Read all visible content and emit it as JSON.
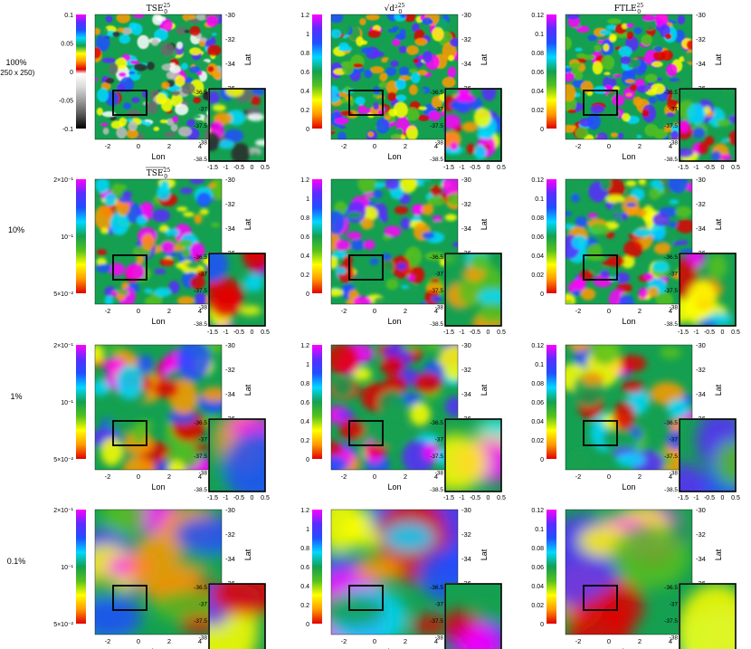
{
  "rows": [
    {
      "label": "100%",
      "sublabel": "(250 x 250)"
    },
    {
      "label": "10%",
      "sublabel": ""
    },
    {
      "label": "1%",
      "sublabel": ""
    },
    {
      "label": "0.1%",
      "sublabel": ""
    }
  ],
  "columns": [
    {
      "title_base": "TSE",
      "sup": "25",
      "sub": "0",
      "overline": false,
      "colorbar": "diverging"
    },
    {
      "title_base": "√d²",
      "sup": "25",
      "sub": "0",
      "overline": false,
      "colorbar": "rainbow"
    },
    {
      "title_base": "FTLE",
      "sup": "25",
      "sub": "0",
      "overline": false,
      "colorbar": "rainbow"
    }
  ],
  "row2_col1_title": {
    "base": "TSE",
    "sup": "25",
    "sub": "0",
    "overline": true
  },
  "xlabel": "Lon",
  "ylabel": "Lat",
  "main_xticks": [
    "-2",
    "0",
    "2",
    "4"
  ],
  "main_yticks": [
    "-30",
    "-32",
    "-34",
    "-36"
  ],
  "inset_xticks": [
    "-1.5",
    "-1",
    "-0.5",
    "0",
    "0.5"
  ],
  "inset_yticks": [
    "-36.5",
    "-37",
    "-37.5",
    "-38",
    "-38.5"
  ],
  "colorbars": {
    "tse_100": [
      "0.1",
      "0.05",
      "0",
      "-0.05",
      "-0.1"
    ],
    "tse_log": [
      "2×10⁻¹",
      "10⁻¹",
      "5×10⁻²"
    ],
    "d2": [
      "1.2",
      "1",
      "0.8",
      "0.6",
      "0.4",
      "0.2",
      "0"
    ],
    "ftle": [
      "0.12",
      "0.1",
      "0.08",
      "0.06",
      "0.04",
      "0.02",
      "0"
    ]
  },
  "palette": {
    "rainbow": [
      "#ff00ff",
      "#5a2cff",
      "#1f4fff",
      "#00d8ff",
      "#14a050",
      "#55c01e",
      "#ffff00",
      "#ff9a00",
      "#e00000"
    ],
    "diverging_top": [
      "#ff00ff",
      "#5a2cff",
      "#1f4fff",
      "#00d8ff",
      "#14a050",
      "#ffff00",
      "#ff9a00",
      "#e00000"
    ],
    "diverging_bottom": [
      "#ffffff",
      "#d8d8d8",
      "#9a9a9a",
      "#555555",
      "#000000"
    ]
  }
}
